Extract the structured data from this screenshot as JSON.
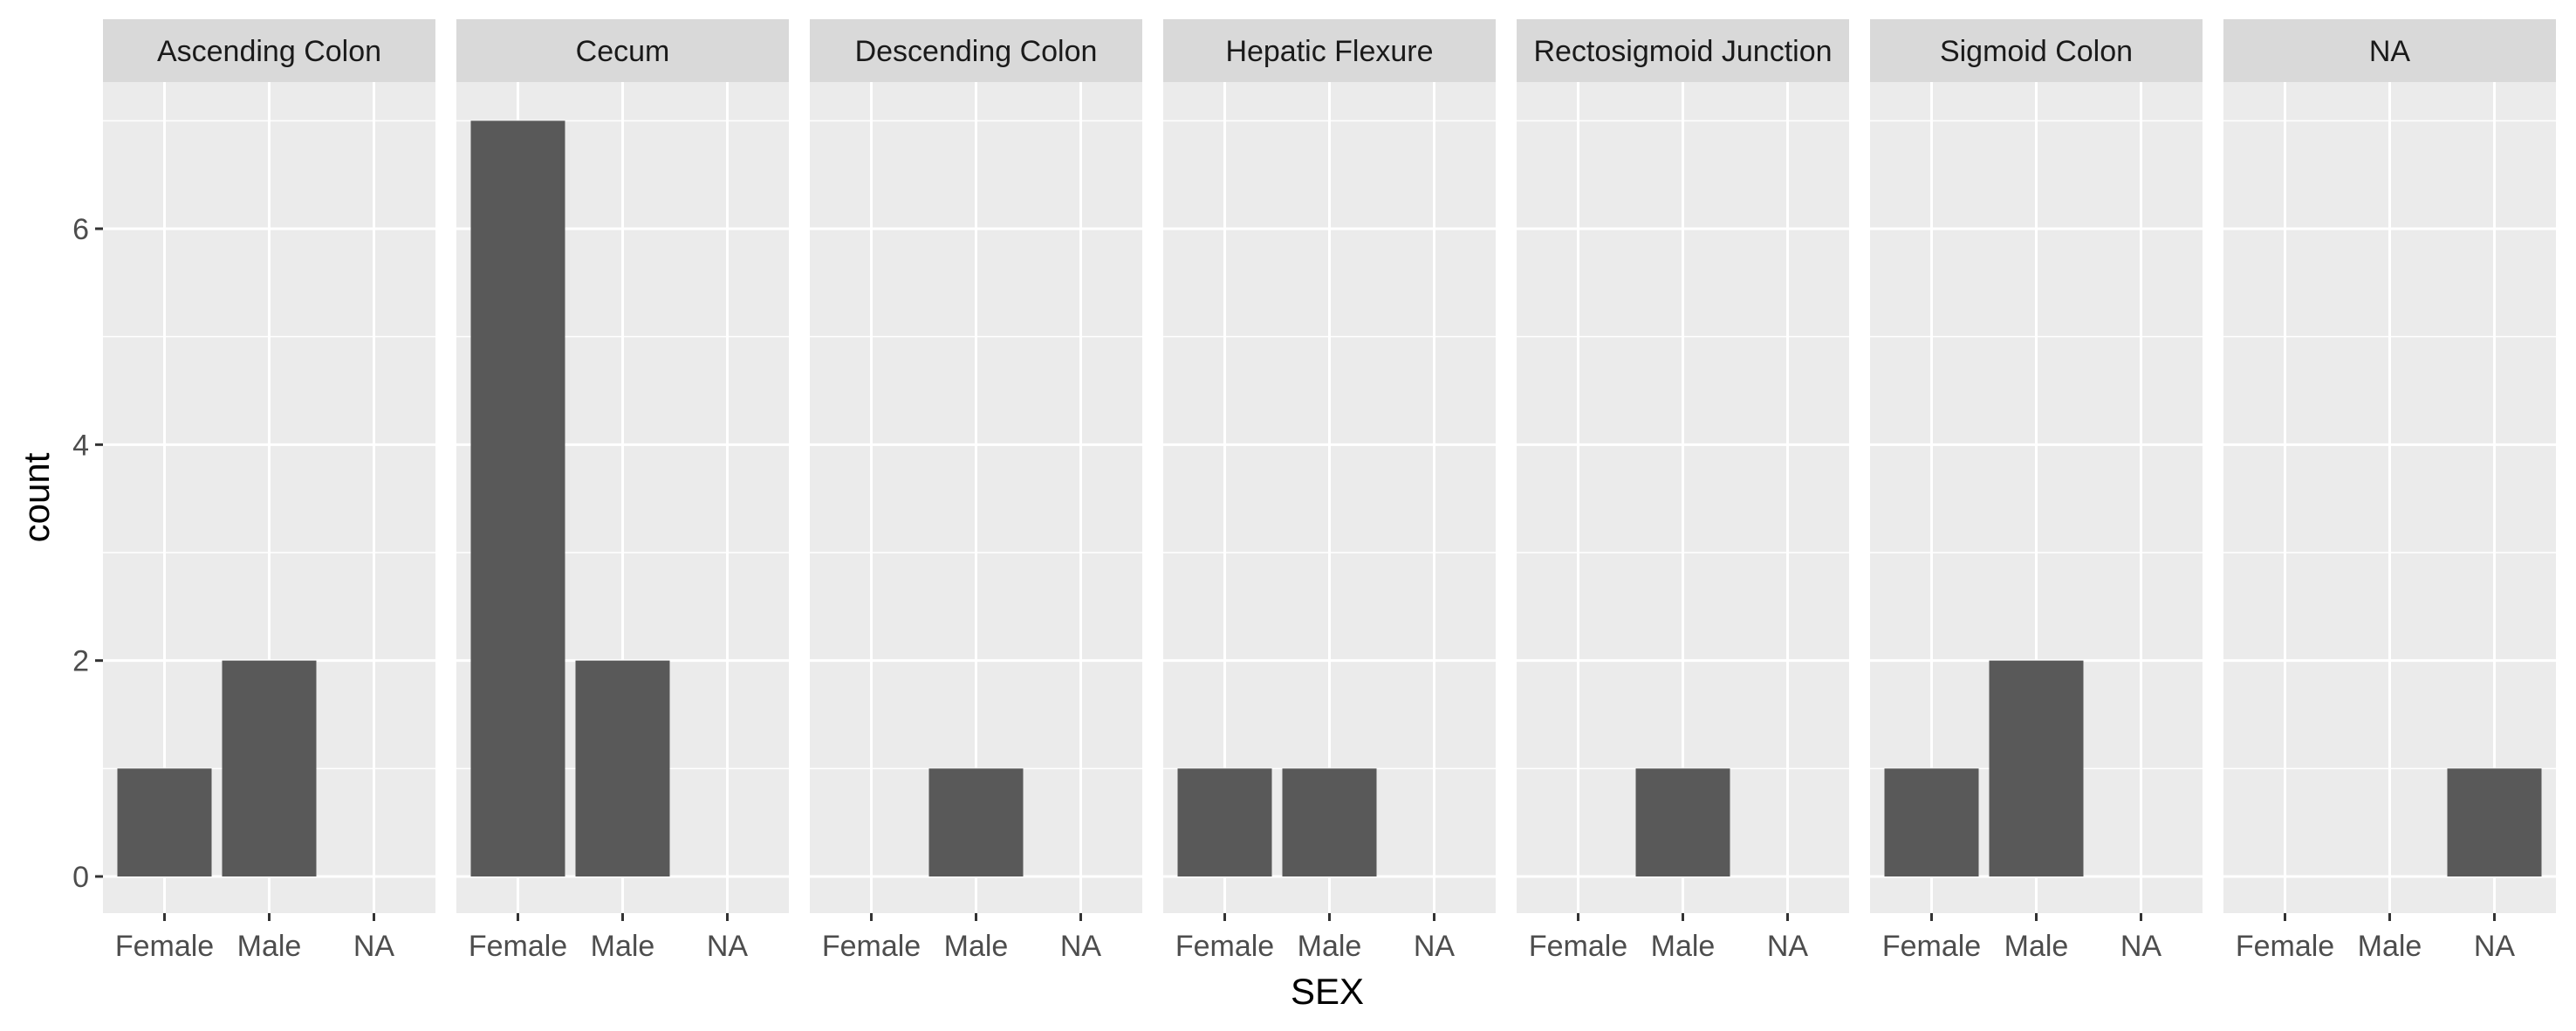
{
  "chart_data": {
    "type": "bar",
    "facet_by": "",
    "facets": [
      "Ascending Colon",
      "Cecum",
      "Descending Colon",
      "Hepatic Flexure",
      "Rectosigmoid Junction",
      "Sigmoid Colon",
      "NA"
    ],
    "categories": [
      "Female",
      "Male",
      "NA"
    ],
    "values": [
      [
        1,
        2,
        0
      ],
      [
        7,
        2,
        0
      ],
      [
        0,
        1,
        0
      ],
      [
        1,
        1,
        0
      ],
      [
        0,
        1,
        0
      ],
      [
        1,
        2,
        0
      ],
      [
        0,
        0,
        1
      ]
    ],
    "xlabel": "SEX",
    "ylabel": "count",
    "yticks": [
      0,
      2,
      4,
      6
    ],
    "ylim": [
      0,
      7.35
    ],
    "grid": true,
    "colors": {
      "bar": "#595959",
      "panel": "#ebebeb",
      "strip": "#d9d9d9",
      "grid": "#ffffff"
    }
  }
}
